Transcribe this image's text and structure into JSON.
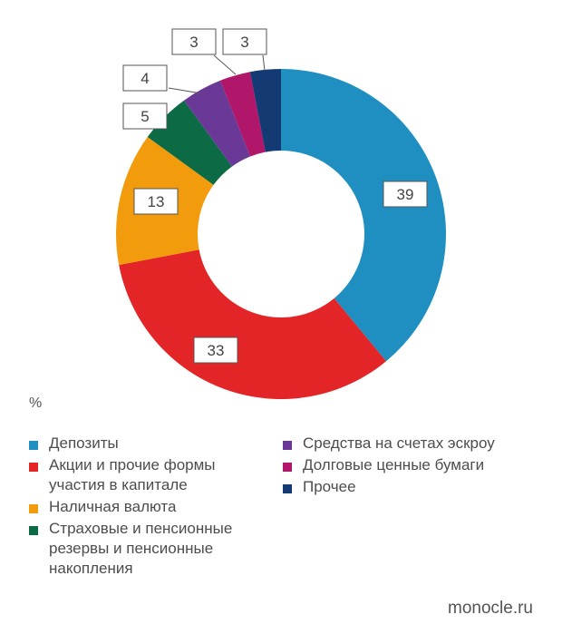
{
  "chart_data": {
    "type": "pie",
    "unit": "%",
    "slices": [
      {
        "label": "Депозиты",
        "value": 39,
        "color": "#1f8fc1"
      },
      {
        "label": "Акции и прочие формы участия в капитале",
        "value": 33,
        "color": "#e42528"
      },
      {
        "label": "Наличная валюта",
        "value": 13,
        "color": "#f29b0c"
      },
      {
        "label": "Страховые и пенсионные резервы и пенсионные накопления",
        "value": 5,
        "color": "#0c6b44"
      },
      {
        "label": "Средства на счетах эскроу",
        "value": 4,
        "color": "#6a3897"
      },
      {
        "label": "Долговые ценные бумаги",
        "value": 3,
        "color": "#b0166a"
      },
      {
        "label": "Прочее",
        "value": 3,
        "color": "#133a73"
      }
    ],
    "legend_columns": {
      "left": [
        0,
        1,
        2,
        3
      ],
      "right": [
        4,
        5,
        6
      ]
    }
  },
  "source": "monocle.ru"
}
